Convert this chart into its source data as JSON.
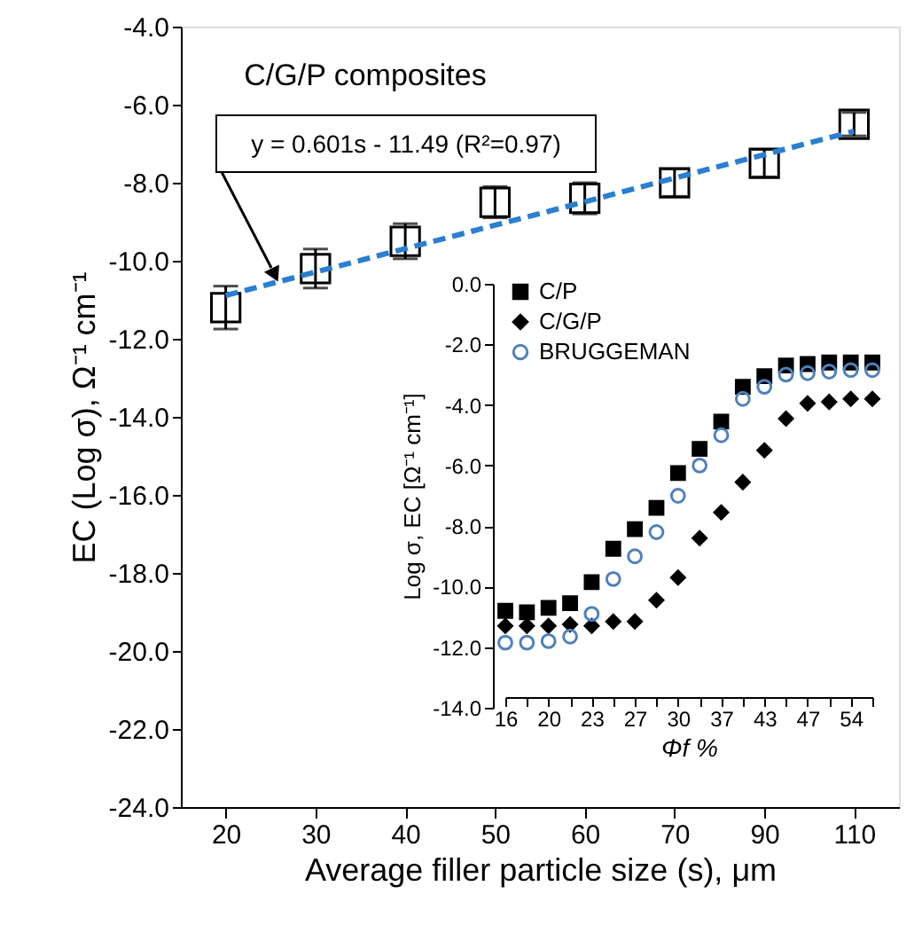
{
  "chart_data": [
    {
      "type": "scatter",
      "categories": [
        "20",
        "30",
        "40",
        "50",
        "60",
        "70",
        "90",
        "110"
      ],
      "xlabel": "Average filler particle size (s), μm",
      "ylabel": "EC (Log σ), Ω⁻¹ cm⁻¹",
      "ylim": [
        -24,
        -4
      ],
      "yticks": [
        {
          "value": -4,
          "label": "-4.0"
        },
        {
          "value": -6,
          "label": "-6.0"
        },
        {
          "value": -8,
          "label": "-8.0"
        },
        {
          "value": -10,
          "label": "-10.0"
        },
        {
          "value": -12,
          "label": "-12.0"
        },
        {
          "value": -14,
          "label": "-14.0"
        },
        {
          "value": -16,
          "label": "-16.0"
        },
        {
          "value": -18,
          "label": "-18.0"
        },
        {
          "value": -20,
          "label": "-20.0"
        },
        {
          "value": -22,
          "label": "-22.0"
        },
        {
          "value": -24,
          "label": "-24.0"
        }
      ],
      "annotations": [
        "C/G/P composites",
        "y = 0.601s - 11.49 (R²=0.97)"
      ],
      "series": [
        {
          "type": "scatter",
          "marker": "square",
          "color": "#000000",
          "values": [
            -11.2,
            -10.2,
            -9.5,
            -8.5,
            -8.4,
            -8.0,
            -7.5,
            -6.5
          ],
          "errors": [
            0.55,
            0.5,
            0.45,
            0.4,
            0.4,
            0.35,
            0.35,
            0.3
          ]
        },
        {
          "type": "line",
          "line_style": "dashed",
          "color": "#2a7fd0",
          "values": [
            -10.89,
            -10.29,
            -9.69,
            -9.09,
            -8.49,
            -7.88,
            -7.28,
            -6.68
          ]
        }
      ]
    },
    {
      "type": "scatter",
      "categories": [
        "16",
        null,
        "20",
        null,
        "23",
        null,
        "27",
        null,
        "30",
        null,
        "37",
        null,
        "43",
        null,
        "47",
        null,
        "54",
        null
      ],
      "xlabel": "Φf %",
      "ylabel": "Log σ, EC [Ω⁻¹ cm⁻¹]",
      "ylim": [
        -14,
        0
      ],
      "yticks": [
        {
          "value": 0,
          "label": "0.0"
        },
        {
          "value": -2,
          "label": "-2.0"
        },
        {
          "value": -4,
          "label": "-4.0"
        },
        {
          "value": -6,
          "label": "-6.0"
        },
        {
          "value": -8,
          "label": "-8.0"
        },
        {
          "value": -10,
          "label": "-10.0"
        },
        {
          "value": -12,
          "label": "-12.0"
        },
        {
          "value": -14,
          "label": "-14.0"
        }
      ],
      "legend": "top left",
      "series": [
        {
          "name": "C/P",
          "marker": "square",
          "color": "#000000",
          "values": [
            -10.8,
            -10.85,
            -10.7,
            -10.55,
            -9.85,
            -8.75,
            -8.1,
            -7.4,
            -6.25,
            -5.45,
            -4.55,
            -3.4,
            -3.05,
            -2.7,
            -2.65,
            -2.6,
            -2.6,
            -2.6
          ]
        },
        {
          "name": "C/G/P",
          "marker": "diamond",
          "color": "#000000",
          "values": [
            -11.3,
            -11.3,
            -11.3,
            -11.25,
            -11.3,
            -11.15,
            -11.15,
            -10.45,
            -9.7,
            -8.4,
            -7.55,
            -6.55,
            -5.5,
            -4.45,
            -3.95,
            -3.9,
            -3.8,
            -3.8
          ]
        },
        {
          "name": "BRUGGEMAN",
          "marker": "circle",
          "color": "#4f81bd",
          "values": [
            -11.85,
            -11.85,
            -11.8,
            -11.65,
            -10.9,
            -9.75,
            -9.0,
            -8.2,
            -7.0,
            -6.0,
            -5.0,
            -3.8,
            -3.4,
            -3.0,
            -2.95,
            -2.9,
            -2.85,
            -2.85
          ]
        }
      ]
    }
  ]
}
